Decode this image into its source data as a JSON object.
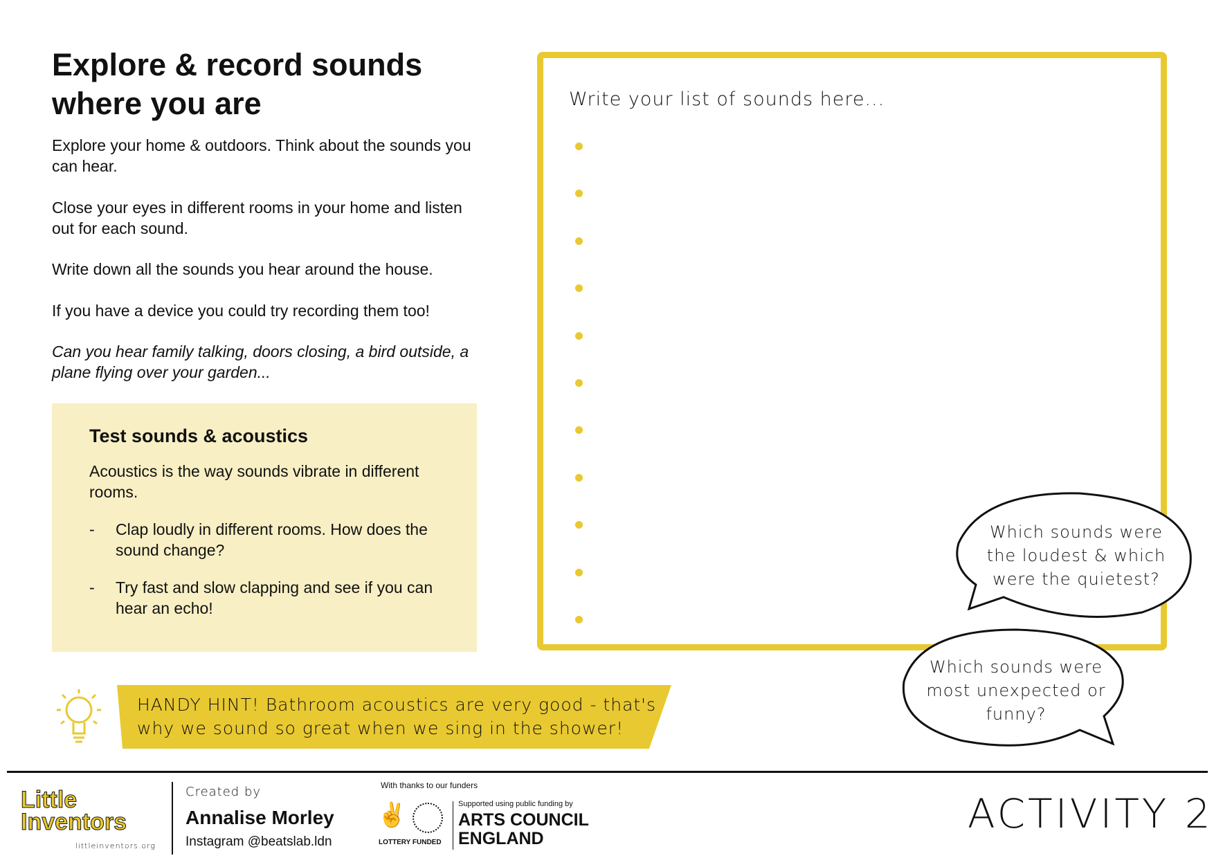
{
  "title": "Explore & record sounds where you are",
  "paragraphs": [
    "Explore your home & outdoors. Think about the sounds you can hear.",
    "Close your eyes in different rooms in your home and listen out for each sound.",
    "Write down all the sounds you hear around the house.",
    "If you have a device you could try recording them too!",
    "Can you hear family talking, doors closing, a bird outside, a plane flying over your garden..."
  ],
  "acoustics": {
    "heading": "Test sounds & acoustics",
    "intro": "Acoustics is the way sounds vibrate in different rooms.",
    "bullet_marker": "-",
    "items": [
      "Clap loudly in different rooms. How does the sound change?",
      "Try fast and slow clapping and see if you can hear an echo!"
    ]
  },
  "list": {
    "heading": "Write your list of sounds here...",
    "bullet_count": 11
  },
  "bubbles": [
    "Which sounds were the loudest & which were the quietest?",
    "Which sounds were most unexpected or funny?"
  ],
  "hint": "HANDY HINT! Bathroom acoustics are very good - that's why we sound so great when we sing in the shower!",
  "footer": {
    "logo_text": "Little Inventors",
    "logo_url": "littleinventors.org",
    "created_by_label": "Created by",
    "author": "Annalise Morley",
    "instagram": "Instagram @beatslab.ldn",
    "funders_label": "With thanks to our funders",
    "lottery": "LOTTERY FUNDED",
    "arts_council_seal": "ARTS COUNCIL ENGLAND",
    "supported": "Supported using public funding by",
    "arts_council": "ARTS COUNCIL ENGLAND",
    "activity": "ACTIVITY 2"
  },
  "colors": {
    "accent": "#e9c931",
    "panel": "#f8efc4"
  },
  "icons": [
    "lightbulb-icon",
    "crossed-fingers-icon"
  ]
}
